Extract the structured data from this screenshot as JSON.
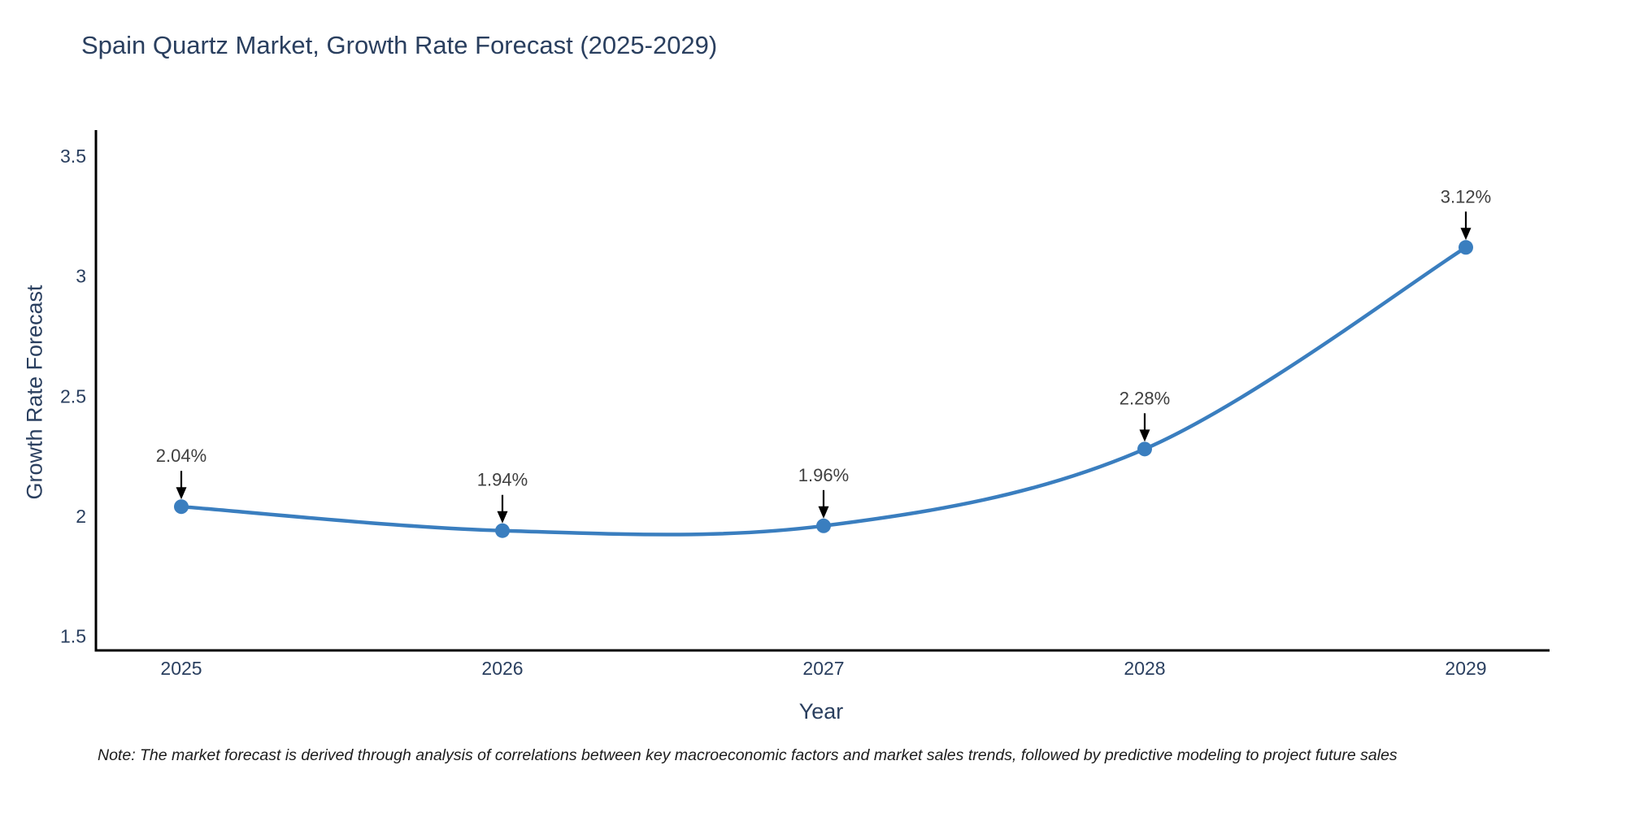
{
  "title": "Spain Quartz Market, Growth Rate Forecast (2025-2029)",
  "note": "Note: The market forecast is derived through analysis of correlations between key macroeconomic factors and market sales trends, followed by predictive modeling to project future sales",
  "chart_data": {
    "type": "line",
    "title": "Spain Quartz Market, Growth Rate Forecast (2025-2029)",
    "xlabel": "Year",
    "ylabel": "Growth Rate Forecast",
    "categories": [
      "2025",
      "2026",
      "2027",
      "2028",
      "2029"
    ],
    "series": [
      {
        "name": "Growth Rate Forecast",
        "values": [
          2.04,
          1.94,
          1.96,
          2.28,
          3.12
        ],
        "point_labels": [
          "2.04%",
          "1.94%",
          "1.96%",
          "2.28%",
          "3.12%"
        ]
      }
    ],
    "yticks": [
      1.5,
      2,
      2.5,
      3,
      3.5
    ],
    "ylim": [
      1.44,
      3.67
    ],
    "line_shape": "spline",
    "marker_style": "circle",
    "grid": false,
    "legend_position": "none",
    "annotations_have_arrows": true,
    "colors": {
      "line": "#3a7ebf",
      "marker": "#3a7ebf",
      "axis_line": "#000000",
      "title_text": "#2a3f5f",
      "tick_text": "#2a3f5f",
      "annotation_text": "#404040",
      "arrow": "#000000",
      "background": "#ffffff"
    }
  }
}
